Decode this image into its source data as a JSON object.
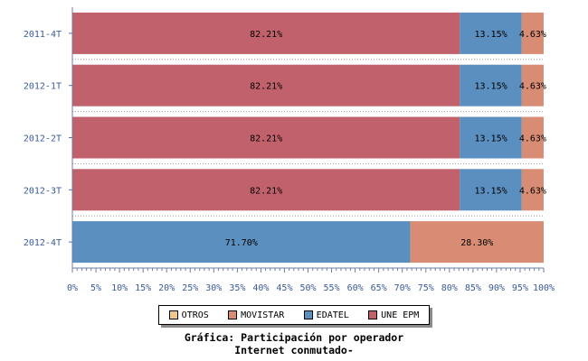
{
  "chart_data": {
    "type": "bar",
    "orientation": "horizontal",
    "stacked": true,
    "categories": [
      "2011-4T",
      "2012-1T",
      "2012-2T",
      "2012-3T",
      "2012-4T"
    ],
    "series": [
      {
        "name": "UNE EPM",
        "color": "#c0616b",
        "values": [
          82.21,
          82.21,
          82.21,
          82.21,
          0
        ]
      },
      {
        "name": "EDATEL",
        "color": "#5b8fc0",
        "values": [
          13.15,
          13.15,
          13.15,
          13.15,
          71.7
        ]
      },
      {
        "name": "MOVISTAR",
        "color": "#d88c74",
        "values": [
          4.63,
          4.63,
          4.63,
          4.63,
          28.3
        ]
      },
      {
        "name": "OTROS",
        "color": "#f0c88a",
        "values": [
          0,
          0,
          0,
          0,
          0
        ]
      }
    ],
    "data_labels": [
      [
        "82.21%",
        "13.15%",
        "4.63%"
      ],
      [
        "82.21%",
        "13.15%",
        "4.63%"
      ],
      [
        "82.21%",
        "13.15%",
        "4.63%"
      ],
      [
        "82.21%",
        "13.15%",
        "4.63%"
      ],
      [
        "71.70%",
        "28.30%"
      ]
    ],
    "xlim": [
      0,
      100
    ],
    "xticks": [
      "0%",
      "5%",
      "10%",
      "15%",
      "20%",
      "25%",
      "30%",
      "35%",
      "40%",
      "45%",
      "50%",
      "55%",
      "60%",
      "65%",
      "70%",
      "75%",
      "80%",
      "85%",
      "90%",
      "95%",
      "100%"
    ],
    "legend": {
      "placement": "bottom",
      "entries": [
        "OTROS",
        "MOVISTAR",
        "EDATEL",
        "UNE EPM"
      ]
    },
    "title": "Gráfica: Participación por operador",
    "subtitle": "Internet conmutado-"
  }
}
